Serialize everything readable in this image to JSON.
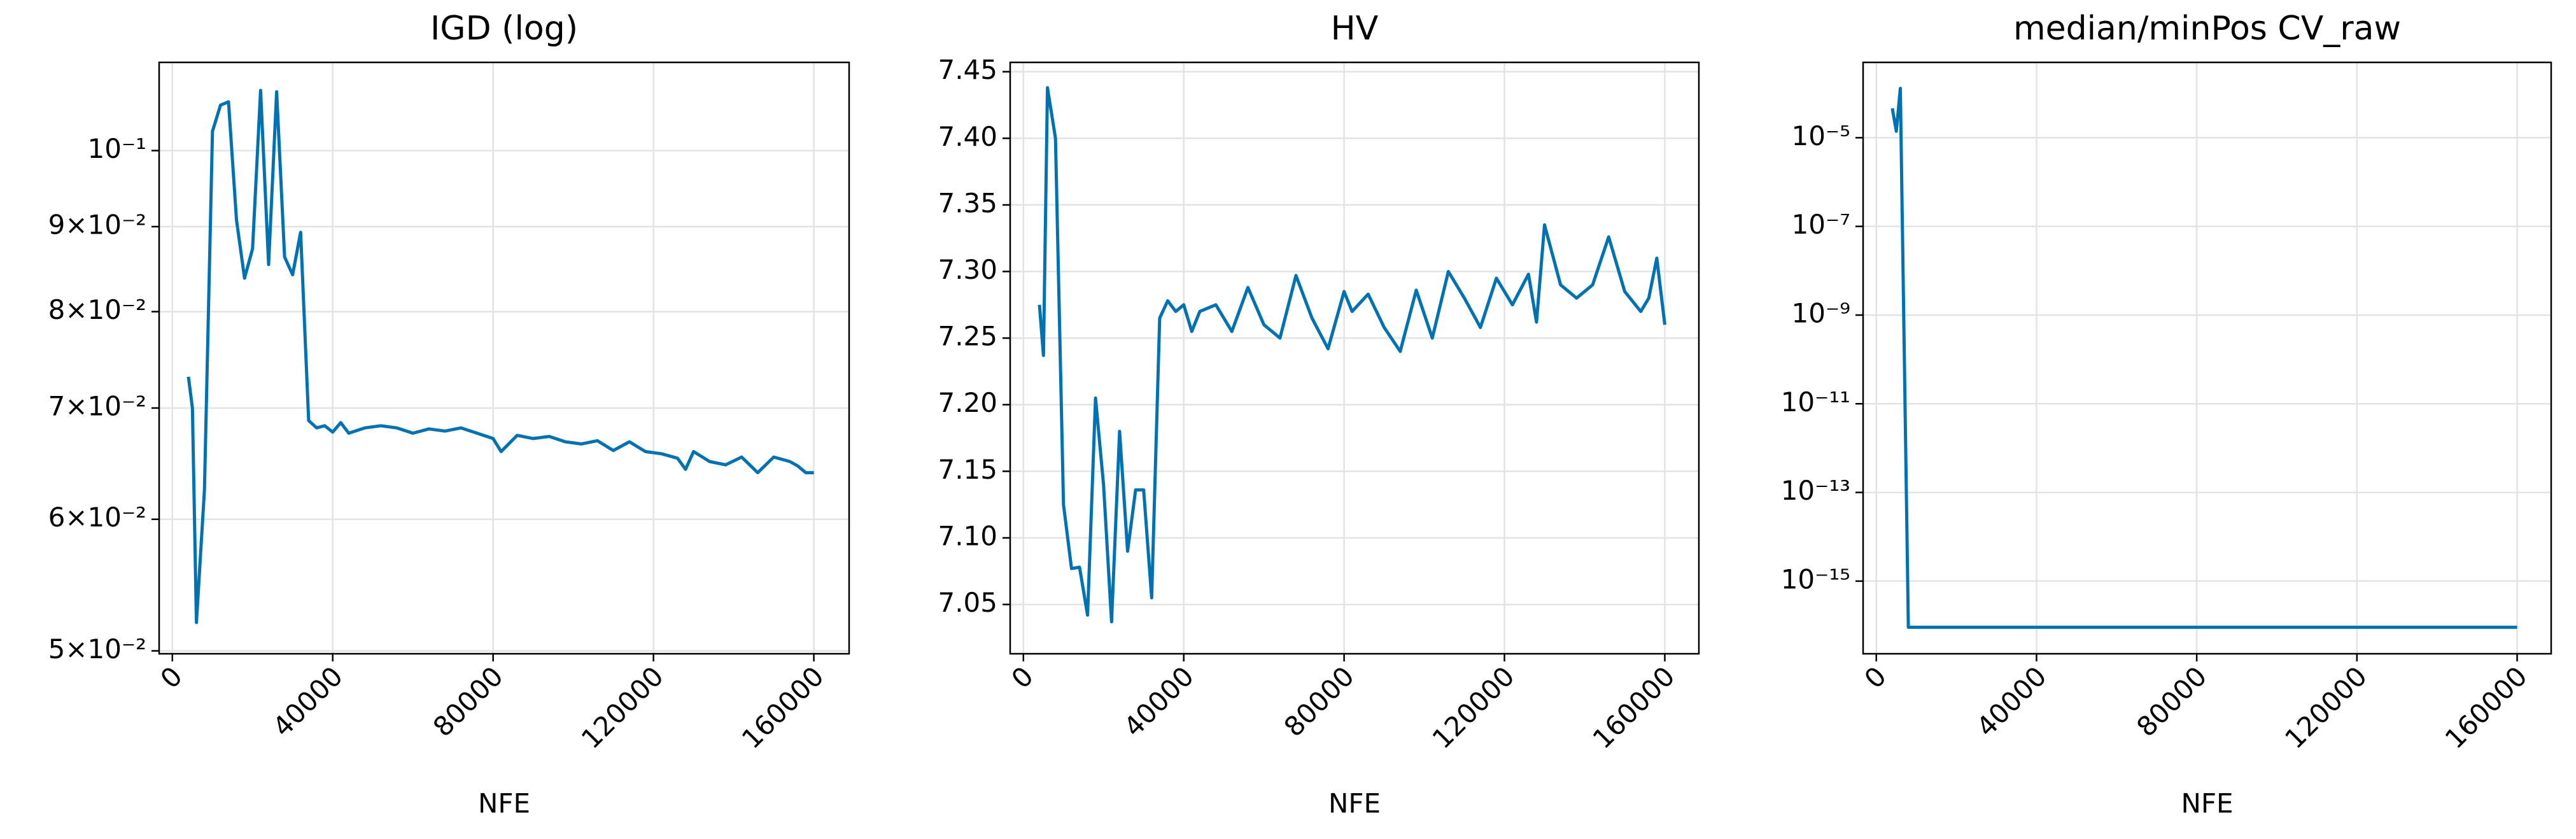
{
  "chart_data": [
    {
      "type": "line",
      "title": "IGD (log)",
      "xlabel": "NFE",
      "ylog": true,
      "grid": true,
      "color": "#0072b2",
      "x": [
        4000,
        5000,
        6000,
        8000,
        10000,
        12000,
        14000,
        16000,
        18000,
        20000,
        22000,
        24000,
        26000,
        28000,
        30000,
        32000,
        34000,
        36000,
        38000,
        40000,
        42000,
        44000,
        48000,
        52000,
        56000,
        60000,
        64000,
        68000,
        72000,
        76000,
        80000,
        82000,
        86000,
        90000,
        94000,
        98000,
        102000,
        106000,
        110000,
        114000,
        118000,
        122000,
        126000,
        128000,
        130000,
        134000,
        138000,
        142000,
        146000,
        150000,
        154000,
        156000,
        158000,
        160000
      ],
      "values": [
        0.0731,
        0.07,
        0.052,
        0.0625,
        0.1027,
        0.1065,
        0.107,
        0.0908,
        0.0838,
        0.0873,
        0.1087,
        0.0854,
        0.1085,
        0.0863,
        0.0842,
        0.0893,
        0.0688,
        0.0681,
        0.0683,
        0.0677,
        0.0686,
        0.0676,
        0.0681,
        0.0683,
        0.0681,
        0.0676,
        0.068,
        0.0678,
        0.0681,
        0.0676,
        0.0671,
        0.0659,
        0.0674,
        0.0671,
        0.0673,
        0.0668,
        0.0666,
        0.0669,
        0.066,
        0.0668,
        0.0659,
        0.0657,
        0.0653,
        0.0643,
        0.0659,
        0.065,
        0.0647,
        0.0654,
        0.064,
        0.0654,
        0.065,
        0.0646,
        0.064,
        0.064
      ],
      "xlim": [
        -3300,
        168800
      ],
      "xticks": [
        0,
        40000,
        80000,
        120000,
        160000
      ],
      "ylim": [
        0.0498,
        0.113
      ],
      "yticks": [
        {
          "value": 0.05,
          "label": "5×10⁻²"
        },
        {
          "value": 0.06,
          "label": "6×10⁻²"
        },
        {
          "value": 0.07,
          "label": "7×10⁻²"
        },
        {
          "value": 0.08,
          "label": "8×10⁻²"
        },
        {
          "value": 0.09,
          "label": "9×10⁻²"
        },
        {
          "value": 0.1,
          "label": "10⁻¹"
        }
      ]
    },
    {
      "type": "line",
      "title": "HV",
      "xlabel": "NFE",
      "ylog": false,
      "grid": true,
      "color": "#0072b2",
      "x": [
        4000,
        5000,
        6000,
        8000,
        10000,
        12000,
        14000,
        16000,
        18000,
        20000,
        22000,
        24000,
        26000,
        28000,
        30000,
        32000,
        34000,
        36000,
        38000,
        40000,
        42000,
        44000,
        48000,
        52000,
        56000,
        60000,
        64000,
        68000,
        72000,
        76000,
        80000,
        82000,
        86000,
        90000,
        94000,
        98000,
        102000,
        106000,
        110000,
        114000,
        118000,
        122000,
        126000,
        128000,
        130000,
        134000,
        138000,
        142000,
        146000,
        150000,
        154000,
        156000,
        158000,
        160000
      ],
      "values": [
        7.275,
        7.237,
        7.438,
        7.4,
        7.125,
        7.077,
        7.078,
        7.042,
        7.205,
        7.14,
        7.037,
        7.18,
        7.09,
        7.136,
        7.136,
        7.055,
        7.265,
        7.278,
        7.27,
        7.275,
        7.255,
        7.27,
        7.275,
        7.255,
        7.288,
        7.26,
        7.25,
        7.297,
        7.265,
        7.242,
        7.285,
        7.27,
        7.283,
        7.258,
        7.24,
        7.286,
        7.25,
        7.3,
        7.28,
        7.258,
        7.295,
        7.275,
        7.298,
        7.262,
        7.335,
        7.29,
        7.28,
        7.29,
        7.326,
        7.285,
        7.27,
        7.28,
        7.31,
        7.26
      ],
      "xlim": [
        -3300,
        168500
      ],
      "xticks": [
        0,
        40000,
        80000,
        120000,
        160000
      ],
      "ylim": [
        7.013,
        7.457
      ],
      "yticks": [
        7.05,
        {
          "value": 7.1,
          "label": "7.10"
        },
        7.15,
        {
          "value": 7.2,
          "label": "7.20"
        },
        7.25,
        {
          "value": 7.3,
          "label": "7.30"
        },
        7.35,
        {
          "value": 7.4,
          "label": "7.40"
        },
        7.45
      ]
    },
    {
      "type": "line",
      "title": "median/minPos CV_raw",
      "xlabel": "NFE",
      "ylog": true,
      "grid": true,
      "color": "#0072b2",
      "x": [
        4000,
        5000,
        6000,
        8000,
        10000,
        20000,
        40000,
        80000,
        120000,
        160000
      ],
      "values": [
        4.6e-05,
        1.4e-05,
        0.00013,
        9.1e-17,
        9.1e-17,
        9.1e-17,
        9.1e-17,
        9.1e-17,
        9.1e-17,
        9.1e-17
      ],
      "xlim": [
        -3300,
        168500
      ],
      "xticks": [
        0,
        40000,
        80000,
        120000,
        160000
      ],
      "ylim": [
        2.3e-17,
        0.0005
      ],
      "yticks": [
        {
          "value": 1e-15,
          "label": "10⁻¹⁵"
        },
        {
          "value": 1e-13,
          "label": "10⁻¹³"
        },
        {
          "value": 1e-11,
          "label": "10⁻¹¹"
        },
        {
          "value": 1e-09,
          "label": "10⁻⁹"
        },
        {
          "value": 1e-07,
          "label": "10⁻⁷"
        },
        {
          "value": 1e-05,
          "label": "10⁻⁵"
        }
      ]
    }
  ]
}
